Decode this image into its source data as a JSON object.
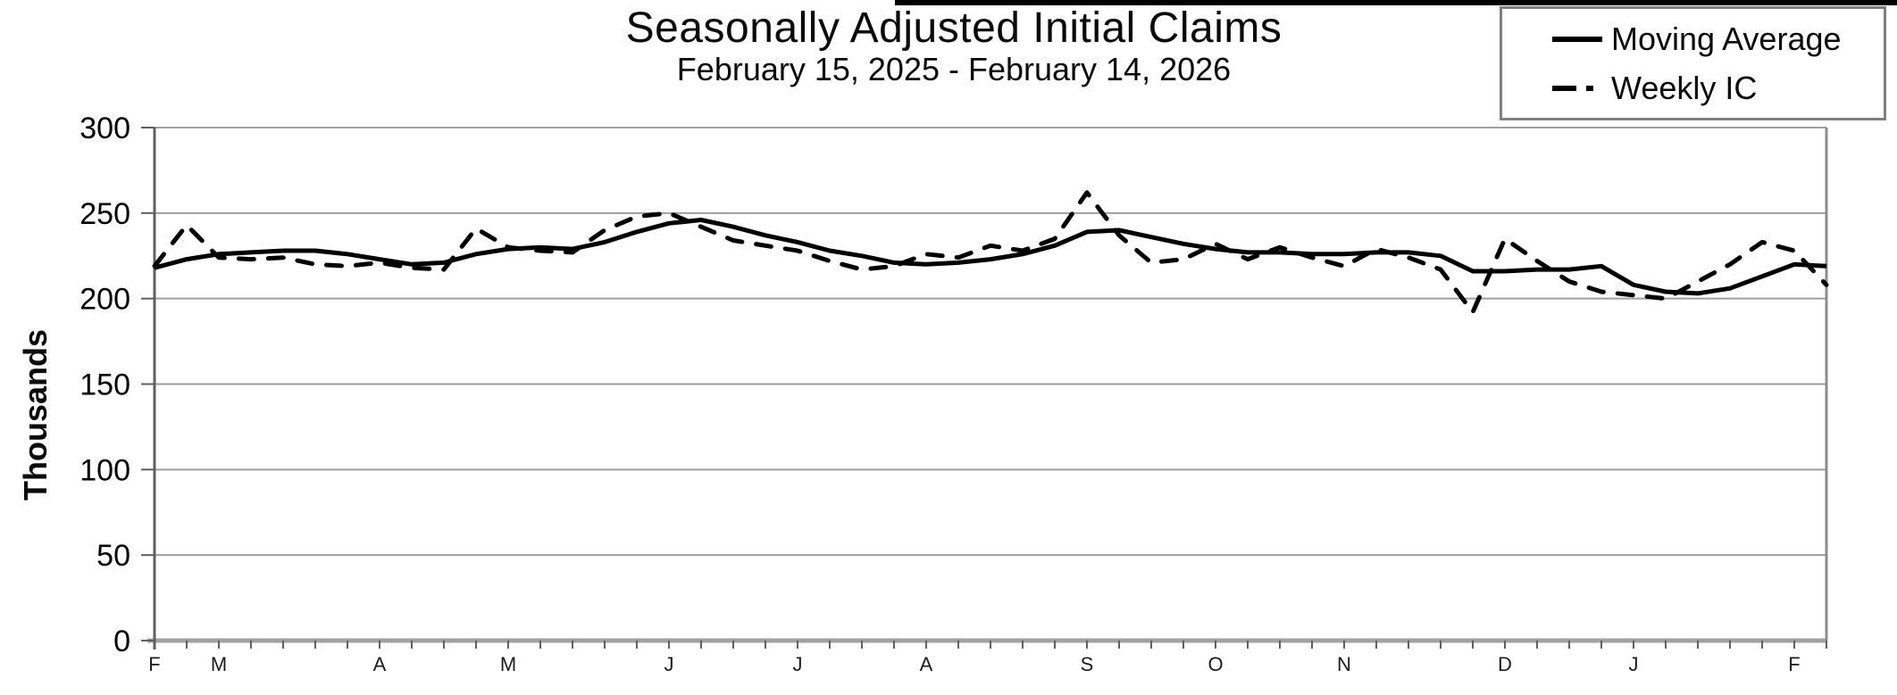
{
  "header": {
    "title": "Seasonally Adjusted Initial Claims",
    "subtitle": "February 15, 2025 - February 14, 2026"
  },
  "legend": {
    "items": [
      {
        "label": "Moving Average",
        "line_style": "solid"
      },
      {
        "label": "Weekly IC",
        "line_style": "dashed"
      }
    ]
  },
  "y_axis": {
    "label": "Thousands",
    "ticks": [
      0,
      50,
      100,
      150,
      200,
      250,
      300
    ]
  },
  "x_axis": {
    "months": [
      {
        "label": "F",
        "week": 0
      },
      {
        "label": "M",
        "week": 2
      },
      {
        "label": "A",
        "week": 7
      },
      {
        "label": "M",
        "week": 11
      },
      {
        "label": "J",
        "week": 16
      },
      {
        "label": "J",
        "week": 20
      },
      {
        "label": "A",
        "week": 24
      },
      {
        "label": "S",
        "week": 29
      },
      {
        "label": "O",
        "week": 33
      },
      {
        "label": "N",
        "week": 37
      },
      {
        "label": "D",
        "week": 42
      },
      {
        "label": "J",
        "week": 46
      },
      {
        "label": "F",
        "week": 51
      }
    ]
  },
  "chart_data": {
    "type": "line",
    "title": "Seasonally Adjusted Initial Claims",
    "subtitle": "February 15, 2025 - February 14, 2026",
    "x_unit": "week",
    "n_weeks": 53,
    "ylim": [
      0,
      300
    ],
    "ylabel": "Thousands",
    "grid": true,
    "legend_position": "top-right",
    "series": [
      {
        "name": "Moving Average",
        "line_style": "solid",
        "color": "#000000",
        "values": [
          218,
          223,
          226,
          227,
          228,
          228,
          226,
          223,
          220,
          221,
          226,
          229,
          230,
          229,
          233,
          239,
          244,
          246,
          242,
          237,
          233,
          228,
          225,
          221,
          220,
          221,
          223,
          226,
          231,
          239,
          240,
          236,
          232,
          229,
          227,
          227,
          226,
          226,
          227,
          227,
          225,
          216,
          216,
          217,
          217,
          219,
          208,
          204,
          203,
          206,
          213,
          220,
          219
        ]
      },
      {
        "name": "Weekly IC",
        "line_style": "dashed",
        "color": "#000000",
        "values": [
          219,
          243,
          224,
          223,
          224,
          220,
          219,
          221,
          218,
          217,
          241,
          230,
          228,
          227,
          240,
          248,
          250,
          242,
          234,
          231,
          228,
          222,
          217,
          219,
          226,
          224,
          231,
          228,
          235,
          262,
          237,
          221,
          223,
          232,
          223,
          230,
          224,
          219,
          229,
          224,
          217,
          192,
          235,
          222,
          210,
          204,
          202,
          200,
          210,
          220,
          233,
          228,
          208
        ]
      }
    ]
  },
  "colors": {
    "background": "#ffffff",
    "line": "#000000",
    "grid": "#9e9e9e",
    "baseline": "#a2a2a2",
    "axis": "#5f5f5f",
    "right_border": "#8c8c8c",
    "legend_border": "#7f7f7f",
    "top_bar": "#000000",
    "month_label": "#1c1c1c"
  }
}
